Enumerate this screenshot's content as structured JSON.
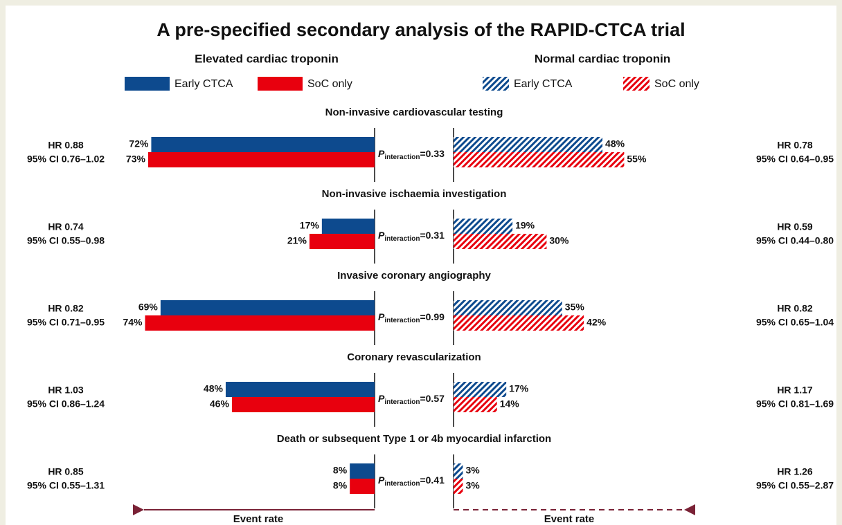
{
  "chart_data": {
    "type": "butterfly-bar",
    "title": "A pre-specified secondary analysis of the RAPID-CTCA trial",
    "left_title": "Elevated cardiac troponin",
    "right_title": "Normal cardiac troponin",
    "categories": [
      "Non-invasive cardiovascular testing",
      "Non-invasive ischaemia investigation",
      "Invasive coronary angiography",
      "Coronary revascularization",
      "Death or subsequent Type 1 or 4b myocardial infarction"
    ],
    "xlim": [
      0,
      75
    ],
    "series": [
      {
        "name": "Early CTCA",
        "color": "#0d4a8e",
        "side": "left",
        "hatched": false,
        "values": [
          72,
          17,
          69,
          48,
          8
        ],
        "value_labels": [
          "72%",
          "17%",
          "69%",
          "48%",
          "8%"
        ]
      },
      {
        "name": "SoC only",
        "color": "#e8000e",
        "side": "left",
        "hatched": false,
        "values": [
          73,
          21,
          74,
          46,
          8
        ],
        "value_labels": [
          "73%",
          "21%",
          "74%",
          "46%",
          "8%"
        ]
      },
      {
        "name": "Early CTCA",
        "color": "#0d4a8e",
        "side": "right",
        "hatched": true,
        "values": [
          48,
          19,
          35,
          17,
          3
        ],
        "value_labels": [
          "48%",
          "19%",
          "35%",
          "17%",
          "3%"
        ]
      },
      {
        "name": "SoC only",
        "color": "#e8000e",
        "side": "right",
        "hatched": true,
        "values": [
          55,
          30,
          42,
          14,
          3
        ],
        "value_labels": [
          "55%",
          "30%",
          "42%",
          "14%",
          "3%"
        ]
      }
    ],
    "p_symbol": "P",
    "p_subscript": "interaction",
    "p_values": [
      "=0.33",
      "=0.31",
      "=0.99",
      "=0.57",
      "=0.41"
    ],
    "left_hr": [
      "HR 0.88",
      "HR 0.74",
      "HR 0.82",
      "HR 1.03",
      "HR 0.85"
    ],
    "left_ci": [
      "95% CI 0.76–1.02",
      "95% CI 0.55–0.98",
      "95% CI 0.71–0.95",
      "95% CI 0.86–1.24",
      "95% CI 0.55–1.31"
    ],
    "right_hr": [
      "HR 0.78",
      "HR 0.59",
      "HR 0.82",
      "HR 1.17",
      "HR 1.26"
    ],
    "right_ci": [
      "95% CI 0.64–0.95",
      "95% CI 0.44–0.80",
      "95% CI 0.65–1.04",
      "95% CI 0.81–1.69",
      "95% CI 0.55–2.87"
    ],
    "x_label_left": "Event rate",
    "x_label_right": "Event rate"
  }
}
